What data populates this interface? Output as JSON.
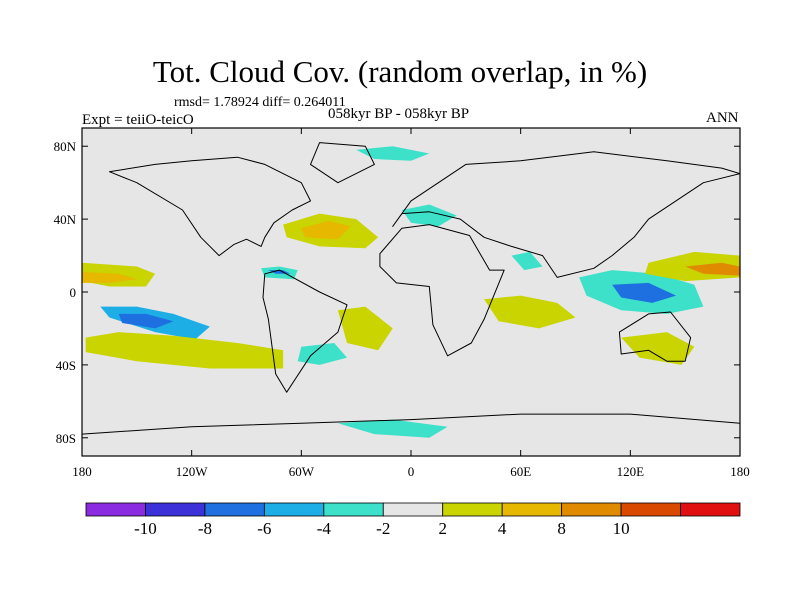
{
  "title": "Tot. Cloud Cov. (random overlap, in %)",
  "stats_line": "rmsd= 1.78924 diff= 0.264011",
  "experiment_line": "Expt = teiiO-teicO",
  "period_line": "058kyr BP - 058kyr BP",
  "season": "ANN",
  "map": {
    "lon_range": [
      -180,
      180
    ],
    "lat_range": [
      -90,
      90
    ],
    "background_color": "#e6e6e6",
    "x_ticks": [
      {
        "lon": -180,
        "label": "180"
      },
      {
        "lon": -120,
        "label": "120W"
      },
      {
        "lon": -60,
        "label": "60W"
      },
      {
        "lon": 0,
        "label": "0"
      },
      {
        "lon": 60,
        "label": "60E"
      },
      {
        "lon": 120,
        "label": "120E"
      },
      {
        "lon": 180,
        "label": "180"
      }
    ],
    "y_ticks": [
      {
        "lat": 80,
        "label": "80N"
      },
      {
        "lat": 40,
        "label": "40N"
      },
      {
        "lat": 0,
        "label": "0"
      },
      {
        "lat": -40,
        "label": "40S"
      },
      {
        "lat": -80,
        "label": "80S"
      }
    ],
    "anomaly_patches": [
      {
        "region": "east-pacific-dry",
        "level": -6,
        "lons": [
          -170,
          -150,
          -130,
          -110,
          -118,
          -140,
          -165
        ],
        "lats": [
          -8,
          -8,
          -12,
          -19,
          -26,
          -22,
          -14
        ]
      },
      {
        "region": "east-pacific-core",
        "level": -8,
        "lons": [
          -160,
          -145,
          -130,
          -140,
          -158
        ],
        "lats": [
          -12,
          -12,
          -16,
          -20,
          -17
        ]
      },
      {
        "region": "spcz-wet",
        "level": 2,
        "lons": [
          -178,
          -160,
          -130,
          -95,
          -70,
          -70,
          -110,
          -150,
          -178
        ],
        "lats": [
          -25,
          -22,
          -24,
          -28,
          -32,
          -42,
          -42,
          -38,
          -33
        ]
      },
      {
        "region": "north-pacific-wet",
        "level": 2,
        "lons": [
          -180,
          -150,
          -140,
          -145,
          -165,
          -180
        ],
        "lats": [
          16,
          14,
          10,
          3,
          3,
          6
        ]
      },
      {
        "region": "north-pacific-core",
        "level": 4,
        "lons": [
          -180,
          -160,
          -150,
          -165,
          -180
        ],
        "lats": [
          11,
          10,
          7,
          5,
          5
        ]
      },
      {
        "region": "north-atlantic-wet",
        "level": 2,
        "lons": [
          -70,
          -50,
          -30,
          -18,
          -25,
          -50,
          -68
        ],
        "lats": [
          37,
          43,
          40,
          30,
          24,
          25,
          30
        ]
      },
      {
        "region": "north-atlantic-core",
        "level": 4,
        "lons": [
          -60,
          -45,
          -33,
          -40,
          -58
        ],
        "lats": [
          35,
          39,
          36,
          29,
          30
        ]
      },
      {
        "region": "caribbean-dry",
        "level": -4,
        "lons": [
          -82,
          -72,
          -62,
          -64,
          -80
        ],
        "lats": [
          13,
          14,
          12,
          7,
          8
        ]
      },
      {
        "region": "caribbean-core",
        "level": -8,
        "lons": [
          -78,
          -70,
          -66,
          -74
        ],
        "lats": [
          12,
          12,
          10,
          10
        ]
      },
      {
        "region": "south-atlantic-wet",
        "level": 2,
        "lons": [
          -40,
          -25,
          -10,
          -18,
          -35
        ],
        "lats": [
          -10,
          -8,
          -20,
          -32,
          -28
        ]
      },
      {
        "region": "south-atlantic-dry",
        "level": -4,
        "lons": [
          -60,
          -42,
          -35,
          -50,
          -62
        ],
        "lats": [
          -30,
          -28,
          -36,
          -40,
          -38
        ]
      },
      {
        "region": "europe-dry",
        "level": -4,
        "lons": [
          -5,
          10,
          25,
          15,
          0
        ],
        "lats": [
          45,
          48,
          42,
          36,
          38
        ]
      },
      {
        "region": "indian-ocean-wet",
        "level": 2,
        "lons": [
          40,
          60,
          80,
          90,
          70,
          48
        ],
        "lats": [
          -4,
          -2,
          -6,
          -14,
          -20,
          -16
        ]
      },
      {
        "region": "arabian-dry",
        "level": -4,
        "lons": [
          55,
          65,
          72,
          62
        ],
        "lats": [
          20,
          22,
          14,
          12
        ]
      },
      {
        "region": "maritime-continent-dry",
        "level": -4,
        "lons": [
          92,
          110,
          135,
          155,
          160,
          140,
          115,
          96
        ],
        "lats": [
          8,
          12,
          10,
          4,
          -8,
          -12,
          -10,
          -2
        ]
      },
      {
        "region": "maritime-continent-core",
        "level": -8,
        "lons": [
          110,
          130,
          145,
          132,
          115
        ],
        "lats": [
          4,
          5,
          -2,
          -6,
          -3
        ]
      },
      {
        "region": "west-pacific-wet",
        "level": 2,
        "lons": [
          130,
          155,
          180,
          180,
          150,
          128
        ],
        "lats": [
          16,
          22,
          20,
          8,
          6,
          10
        ]
      },
      {
        "region": "west-pacific-core",
        "level": 8,
        "lons": [
          150,
          170,
          180,
          180,
          160
        ],
        "lats": [
          14,
          16,
          14,
          9,
          10
        ]
      },
      {
        "region": "australia-wet",
        "level": 2,
        "lons": [
          115,
          140,
          155,
          148,
          125
        ],
        "lats": [
          -25,
          -22,
          -30,
          -40,
          -36
        ]
      },
      {
        "region": "southern-ocean-dry",
        "level": -4,
        "lons": [
          -40,
          -10,
          20,
          10,
          -20
        ],
        "lats": [
          -72,
          -70,
          -74,
          -80,
          -78
        ]
      },
      {
        "region": "arctic-dry",
        "level": -4,
        "lons": [
          -30,
          -10,
          10,
          0,
          -20
        ],
        "lats": [
          78,
          80,
          76,
          72,
          73
        ]
      }
    ],
    "land_outlines": [
      {
        "name": "north-america",
        "lons": [
          -165,
          -140,
          -120,
          -95,
          -80,
          -60,
          -55,
          -65,
          -75,
          -80,
          -82,
          -90,
          -97,
          -105,
          -115,
          -125,
          -150,
          -165
        ],
        "lats": [
          66,
          70,
          72,
          74,
          70,
          60,
          50,
          45,
          38,
          30,
          25,
          29,
          26,
          20,
          30,
          45,
          60,
          66
        ]
      },
      {
        "name": "greenland",
        "lons": [
          -50,
          -25,
          -20,
          -40,
          -55
        ],
        "lats": [
          82,
          80,
          70,
          60,
          70
        ]
      },
      {
        "name": "south-america",
        "lons": [
          -80,
          -72,
          -50,
          -35,
          -40,
          -55,
          -68,
          -74,
          -78,
          -81
        ],
        "lats": [
          10,
          12,
          0,
          -7,
          -22,
          -35,
          -55,
          -45,
          -15,
          -3
        ]
      },
      {
        "name": "africa",
        "lons": [
          -17,
          -5,
          10,
          32,
          43,
          51,
          40,
          33,
          20,
          12,
          10,
          -8,
          -17
        ],
        "lats": [
          21,
          35,
          37,
          31,
          12,
          12,
          -15,
          -28,
          -35,
          -18,
          3,
          5,
          14
        ]
      },
      {
        "name": "eurasia",
        "lons": [
          -10,
          0,
          30,
          60,
          100,
          140,
          170,
          180,
          160,
          130,
          122,
          110,
          100,
          80,
          72,
          55,
          40,
          27,
          10,
          -5,
          -10
        ],
        "lats": [
          36,
          50,
          70,
          72,
          77,
          72,
          68,
          65,
          60,
          40,
          30,
          20,
          13,
          8,
          20,
          25,
          30,
          40,
          44,
          43,
          36
        ]
      },
      {
        "name": "australia",
        "lons": [
          114,
          130,
          142,
          153,
          150,
          140,
          130,
          115
        ],
        "lats": [
          -22,
          -12,
          -11,
          -25,
          -38,
          -38,
          -32,
          -34
        ]
      },
      {
        "name": "antarctica",
        "lons": [
          -180,
          -120,
          -60,
          0,
          60,
          120,
          180
        ],
        "lats": [
          -78,
          -74,
          -72,
          -70,
          -67,
          -67,
          -72
        ]
      }
    ]
  },
  "colorbar": {
    "colors": [
      "#8a2be2",
      "#3c31d8",
      "#1e6fe0",
      "#1eaee6",
      "#3de0c8",
      "#e6e6e6",
      "#c9d400",
      "#e6b800",
      "#e08a00",
      "#d94a00",
      "#e01010"
    ],
    "levels": [
      -10,
      -8,
      -6,
      -4,
      -2,
      2,
      4,
      8,
      10
    ],
    "labels": [
      "-10",
      "-8",
      "-6",
      "-4",
      "-2",
      "2",
      "4",
      "8",
      "10"
    ]
  }
}
